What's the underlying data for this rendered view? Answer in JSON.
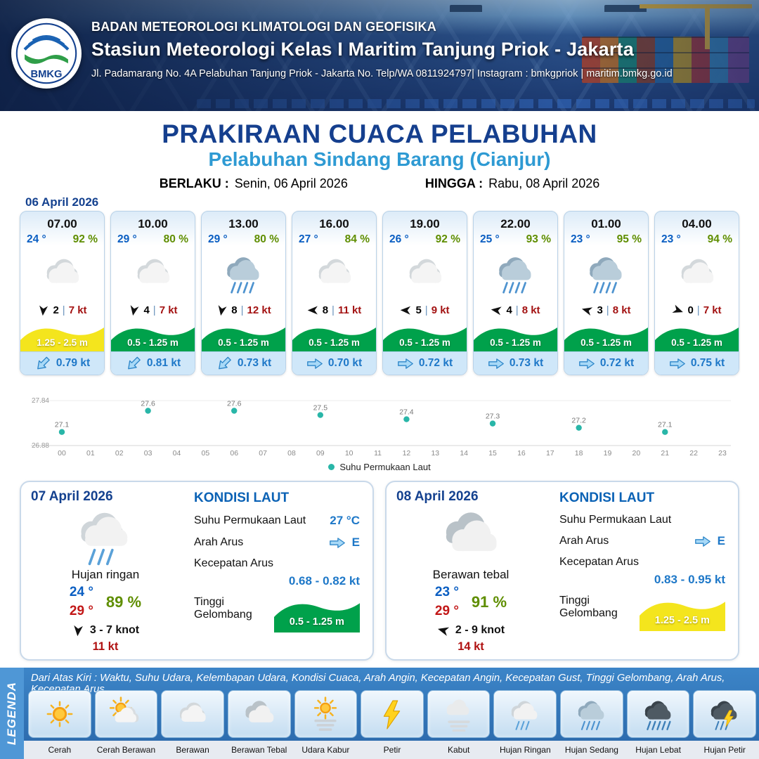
{
  "header": {
    "logo_text": "BMKG",
    "org": "BADAN METEOROLOGI KLIMATOLOGI DAN GEOFISIKA",
    "station": "Stasiun Meteorologi Kelas I Maritim Tanjung Priok - Jakarta",
    "address": "Jl. Padamarang No. 4A Pelabuhan Tanjung Priok - Jakarta No. Telp/WA 0811924797| Instagram : bmkgpriok | maritim.bmkg.go.id"
  },
  "title": {
    "main": "PRAKIRAAN CUACA PELABUHAN",
    "sub": "Pelabuhan Sindang Barang (Cianjur)",
    "valid_from_label": "BERLAKU :",
    "valid_from": "Senin, 06 April 2026",
    "valid_to_label": "HINGGA :",
    "valid_to": "Rabu, 08 April 2026"
  },
  "forecast": {
    "date": "06 April 2026",
    "cards": [
      {
        "time": "07.00",
        "temp": "24 °",
        "humidity": "92 %",
        "icon": "berawan",
        "wind_speed": "2",
        "gust": "7 kt",
        "wind_dir_deg": 95,
        "wave": "1.25 - 2.5 m",
        "wave_color": "#f4e51d",
        "current": "0.79 kt",
        "current_dir_deg": 135
      },
      {
        "time": "10.00",
        "temp": "29 °",
        "humidity": "80 %",
        "icon": "berawan",
        "wind_speed": "4",
        "gust": "7 kt",
        "wind_dir_deg": 100,
        "wave": "0.5 - 1.25 m",
        "wave_color": "#00a14b",
        "current": "0.81 kt",
        "current_dir_deg": 135
      },
      {
        "time": "13.00",
        "temp": "29 °",
        "humidity": "80 %",
        "icon": "hujan-sedang",
        "wind_speed": "8",
        "gust": "12 kt",
        "wind_dir_deg": 100,
        "wave": "0.5 - 1.25 m",
        "wave_color": "#00a14b",
        "current": "0.73 kt",
        "current_dir_deg": 135
      },
      {
        "time": "16.00",
        "temp": "27 °",
        "humidity": "84 %",
        "icon": "berawan",
        "wind_speed": "8",
        "gust": "11 kt",
        "wind_dir_deg": 180,
        "wave": "0.5 - 1.25 m",
        "wave_color": "#00a14b",
        "current": "0.70 kt",
        "current_dir_deg": 0
      },
      {
        "time": "19.00",
        "temp": "26 °",
        "humidity": "92 %",
        "icon": "berawan",
        "wind_speed": "5",
        "gust": "9 kt",
        "wind_dir_deg": 182,
        "wave": "0.5 - 1.25 m",
        "wave_color": "#00a14b",
        "current": "0.72 kt",
        "current_dir_deg": 0
      },
      {
        "time": "22.00",
        "temp": "25 °",
        "humidity": "93 %",
        "icon": "hujan-sedang",
        "wind_speed": "4",
        "gust": "8 kt",
        "wind_dir_deg": 188,
        "wave": "0.5 - 1.25 m",
        "wave_color": "#00a14b",
        "current": "0.73 kt",
        "current_dir_deg": 0
      },
      {
        "time": "01.00",
        "temp": "23 °",
        "humidity": "95 %",
        "icon": "hujan-sedang",
        "wind_speed": "3",
        "gust": "8 kt",
        "wind_dir_deg": 195,
        "wave": "0.5 - 1.25 m",
        "wave_color": "#00a14b",
        "current": "0.72 kt",
        "current_dir_deg": 0
      },
      {
        "time": "04.00",
        "temp": "23 °",
        "humidity": "94 %",
        "icon": "berawan",
        "wind_speed": "0",
        "gust": "7 kt",
        "wind_dir_deg": 20,
        "wave": "0.5 - 1.25 m",
        "wave_color": "#00a14b",
        "current": "0.75 kt",
        "current_dir_deg": 0
      }
    ]
  },
  "chart_data": {
    "type": "scatter",
    "series_name": "Suhu Permukaan Laut",
    "x": [
      0,
      3,
      6,
      9,
      12,
      15,
      18,
      21
    ],
    "values": [
      27.1,
      27.6,
      27.6,
      27.5,
      27.4,
      27.3,
      27.2,
      27.1
    ],
    "x_ticks": [
      "00",
      "01",
      "02",
      "03",
      "04",
      "05",
      "06",
      "07",
      "08",
      "09",
      "10",
      "11",
      "12",
      "13",
      "14",
      "15",
      "16",
      "17",
      "18",
      "19",
      "20",
      "21",
      "22",
      "23"
    ],
    "ylim": [
      26.88,
      27.84
    ],
    "y_ticks": [
      "27.84",
      "26.88"
    ],
    "dot_color": "#29b6a8",
    "title": "",
    "xlabel": "",
    "ylabel": ""
  },
  "days": [
    {
      "date": "07 April 2026",
      "icon": "hujan-ringan",
      "condition": "Hujan ringan",
      "temp_min": "24 °",
      "temp_max": "29 °",
      "humidity": "89 %",
      "wind_dir_deg": 95,
      "wind_range": "3  - 7 knot",
      "gust": "11 kt",
      "sea": {
        "heading": "KONDISI LAUT",
        "sst_label": "Suhu Permukaan Laut",
        "sst": "27 °C",
        "current_dir_label": "Arah Arus",
        "current_dir": "E",
        "current_dir_deg": 0,
        "current_speed_label": "Kecepatan Arus",
        "current_speed": "0.68  - 0.82 kt",
        "wave_label": "Tinggi Gelombang",
        "wave": "0.5 - 1.25 m",
        "wave_color": "#00a14b"
      }
    },
    {
      "date": "08 April 2026",
      "icon": "berawan-tebal",
      "condition": "Berawan tebal",
      "temp_min": "23 °",
      "temp_max": "29 °",
      "humidity": "91 %",
      "wind_dir_deg": 195,
      "wind_range": "2  - 9 knot",
      "gust": "14 kt",
      "sea": {
        "heading": "KONDISI LAUT",
        "sst_label": "Suhu Permukaan Laut",
        "sst": "",
        "current_dir_label": "Arah Arus",
        "current_dir": "E",
        "current_dir_deg": 0,
        "current_speed_label": "Kecepatan Arus",
        "current_speed": "0.83 - 0.95 kt",
        "wave_label": "Tinggi Gelombang",
        "wave": "1.25 - 2.5 m",
        "wave_color": "#f4e51d"
      }
    }
  ],
  "legend": {
    "title": "LEGENDA",
    "description": "Dari Atas Kiri : Waktu, Suhu Udara, Kelembapan Udara, Kondisi Cuaca, Arah Angin, Kecepatan Angin, Kecepatan Gust, Tinggi Gelombang, Arah Arus, Kecepatan Arus",
    "items": [
      {
        "label": "Cerah",
        "icon": "cerah"
      },
      {
        "label": "Cerah Berawan",
        "icon": "cerah-berawan"
      },
      {
        "label": "Berawan",
        "icon": "berawan"
      },
      {
        "label": "Berawan Tebal",
        "icon": "berawan-tebal"
      },
      {
        "label": "Udara Kabur",
        "icon": "udara-kabur"
      },
      {
        "label": "Petir",
        "icon": "petir"
      },
      {
        "label": "Kabut",
        "icon": "kabut"
      },
      {
        "label": "Hujan Ringan",
        "icon": "hujan-ringan"
      },
      {
        "label": "Hujan Sedang",
        "icon": "hujan-sedang"
      },
      {
        "label": "Hujan Lebat",
        "icon": "hujan-lebat"
      },
      {
        "label": "Hujan Petir",
        "icon": "hujan-petir"
      }
    ]
  }
}
